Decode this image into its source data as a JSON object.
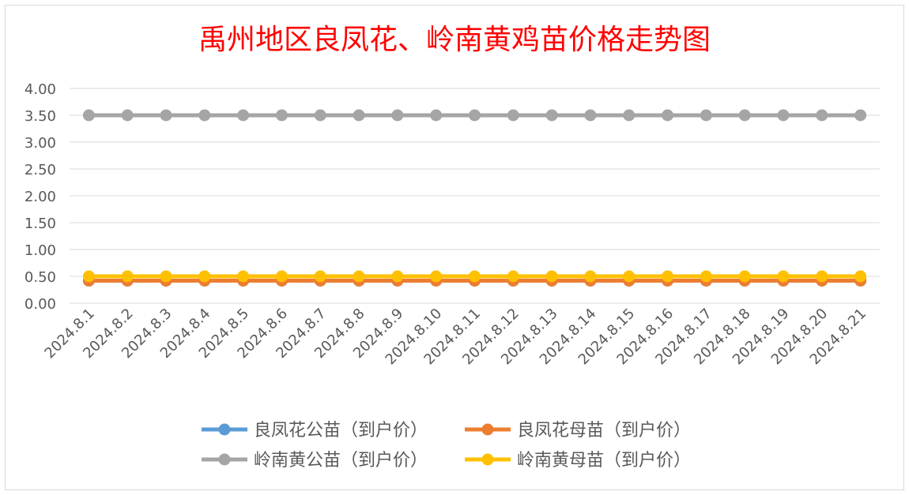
{
  "chart_data": {
    "type": "line",
    "title": "禹州地区良凤花、岭南黄鸡苗价格走势图",
    "xlabel": "",
    "ylabel": "",
    "categories": [
      "2024.8.1",
      "2024.8.2",
      "2024.8.3",
      "2024.8.4",
      "2024.8.5",
      "2024.8.6",
      "2024.8.7",
      "2024.8.8",
      "2024.8.9",
      "2024.8.10",
      "2024.8.11",
      "2024.8.12",
      "2024.8.13",
      "2024.8.14",
      "2024.8.15",
      "2024.8.16",
      "2024.8.17",
      "2024.8.18",
      "2024.8.19",
      "2024.8.20",
      "2024.8.21"
    ],
    "ylim": [
      0,
      4
    ],
    "yticks": [
      "0.00",
      "0.50",
      "1.00",
      "1.50",
      "2.00",
      "2.50",
      "3.00",
      "3.50",
      "4.00"
    ],
    "grid": true,
    "legend_position": "bottom",
    "series": [
      {
        "name": "良凤花公苗（到户价）",
        "color": "#5b9bd5",
        "values": [
          0.42,
          0.42,
          0.42,
          0.42,
          0.42,
          0.42,
          0.42,
          0.42,
          0.42,
          0.42,
          0.42,
          0.42,
          0.42,
          0.42,
          0.42,
          0.42,
          0.42,
          0.42,
          0.42,
          0.42,
          0.42
        ]
      },
      {
        "name": "良凤花母苗（到户价）",
        "color": "#ed7d31",
        "values": [
          0.42,
          0.42,
          0.42,
          0.42,
          0.42,
          0.42,
          0.42,
          0.42,
          0.42,
          0.42,
          0.42,
          0.42,
          0.42,
          0.42,
          0.42,
          0.42,
          0.42,
          0.42,
          0.42,
          0.42,
          0.42
        ]
      },
      {
        "name": "岭南黄公苗（到户价）",
        "color": "#a5a5a5",
        "values": [
          3.5,
          3.5,
          3.5,
          3.5,
          3.5,
          3.5,
          3.5,
          3.5,
          3.5,
          3.5,
          3.5,
          3.5,
          3.5,
          3.5,
          3.5,
          3.5,
          3.5,
          3.5,
          3.5,
          3.5,
          3.5
        ]
      },
      {
        "name": "岭南黄母苗（到户价）",
        "color": "#ffc000",
        "values": [
          0.5,
          0.5,
          0.5,
          0.5,
          0.5,
          0.5,
          0.5,
          0.5,
          0.5,
          0.5,
          0.5,
          0.5,
          0.5,
          0.5,
          0.5,
          0.5,
          0.5,
          0.5,
          0.5,
          0.5,
          0.5
        ]
      }
    ]
  }
}
